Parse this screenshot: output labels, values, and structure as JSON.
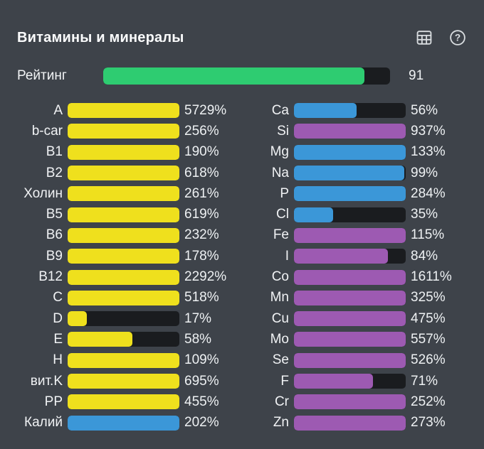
{
  "header": {
    "title": "Витамины и минералы",
    "icons": [
      {
        "name": "table-icon"
      },
      {
        "name": "help-icon"
      }
    ]
  },
  "rating": {
    "label": "Рейтинг",
    "value": 91,
    "max": 100,
    "color": "#2ecc71",
    "track_color": "#1a1c1f"
  },
  "colors": {
    "background": "#3e434a",
    "text": "#eef1f3",
    "track": "#1a1c1f",
    "yellow": "#efe01d",
    "blue": "#3b97d8",
    "purple": "#9d5ab2",
    "green": "#2ecc71",
    "icon": "#d9dde0"
  },
  "chart_data": {
    "type": "bar",
    "unit": "%",
    "bar_scale_max": 100,
    "title": "Витамины и минералы",
    "columns": [
      {
        "name": "vitamins",
        "items": [
          {
            "label": "A",
            "value": 5729,
            "color": "yellow"
          },
          {
            "label": "b-car",
            "value": 256,
            "color": "yellow"
          },
          {
            "label": "B1",
            "value": 190,
            "color": "yellow"
          },
          {
            "label": "B2",
            "value": 618,
            "color": "yellow"
          },
          {
            "label": "Холин",
            "value": 261,
            "color": "yellow"
          },
          {
            "label": "B5",
            "value": 619,
            "color": "yellow"
          },
          {
            "label": "B6",
            "value": 232,
            "color": "yellow"
          },
          {
            "label": "B9",
            "value": 178,
            "color": "yellow"
          },
          {
            "label": "B12",
            "value": 2292,
            "color": "yellow"
          },
          {
            "label": "C",
            "value": 518,
            "color": "yellow"
          },
          {
            "label": "D",
            "value": 17,
            "color": "yellow"
          },
          {
            "label": "E",
            "value": 58,
            "color": "yellow"
          },
          {
            "label": "H",
            "value": 109,
            "color": "yellow"
          },
          {
            "label": "вит.K",
            "value": 695,
            "color": "yellow"
          },
          {
            "label": "PP",
            "value": 455,
            "color": "yellow"
          },
          {
            "label": "Калий",
            "value": 202,
            "color": "blue"
          }
        ]
      },
      {
        "name": "minerals",
        "items": [
          {
            "label": "Ca",
            "value": 56,
            "color": "blue"
          },
          {
            "label": "Si",
            "value": 937,
            "color": "purple"
          },
          {
            "label": "Mg",
            "value": 133,
            "color": "blue"
          },
          {
            "label": "Na",
            "value": 99,
            "color": "blue"
          },
          {
            "label": "P",
            "value": 284,
            "color": "blue"
          },
          {
            "label": "Cl",
            "value": 35,
            "color": "blue"
          },
          {
            "label": "Fe",
            "value": 115,
            "color": "purple"
          },
          {
            "label": "I",
            "value": 84,
            "color": "purple"
          },
          {
            "label": "Co",
            "value": 1611,
            "color": "purple"
          },
          {
            "label": "Mn",
            "value": 325,
            "color": "purple"
          },
          {
            "label": "Cu",
            "value": 475,
            "color": "purple"
          },
          {
            "label": "Mo",
            "value": 557,
            "color": "purple"
          },
          {
            "label": "Se",
            "value": 526,
            "color": "purple"
          },
          {
            "label": "F",
            "value": 71,
            "color": "purple"
          },
          {
            "label": "Cr",
            "value": 252,
            "color": "purple"
          },
          {
            "label": "Zn",
            "value": 273,
            "color": "purple"
          }
        ]
      }
    ]
  }
}
